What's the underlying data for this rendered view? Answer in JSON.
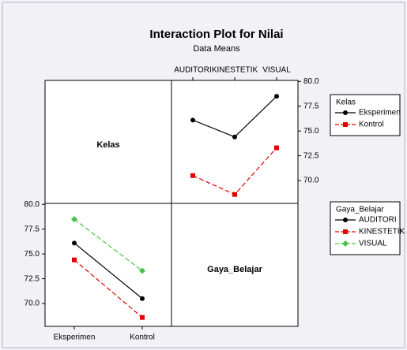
{
  "title": "Interaction Plot for Nilai",
  "subtitle": "Data Means",
  "row_labels": [
    "Kelas",
    "Gaya_Belajar"
  ],
  "chart_data": [
    {
      "type": "line",
      "legend_title": "Kelas",
      "categories": [
        "AUDITORI",
        "KINESTETIK",
        "VISUAL"
      ],
      "series": [
        {
          "name": "Eksperimen",
          "color": "#000000",
          "marker": "circle",
          "dashed": false,
          "values": [
            76.1,
            74.4,
            78.5
          ]
        },
        {
          "name": "Kontrol",
          "color": "#e00000",
          "marker": "square",
          "dashed": true,
          "values": [
            70.5,
            68.6,
            73.3
          ]
        }
      ],
      "ylim": [
        67.7,
        80.1
      ],
      "yticks": [
        {
          "value": 70,
          "label": "70.0"
        },
        {
          "value": 72.5,
          "label": "72.5"
        },
        {
          "value": 75,
          "label": "75.0"
        },
        {
          "value": 77.5,
          "label": "77.5"
        },
        {
          "value": 80,
          "label": "80.0"
        }
      ],
      "y_axis_side": "right",
      "x_axis_side": "top"
    },
    {
      "type": "line",
      "legend_title": "Gaya_Belajar",
      "categories": [
        "Eksperimen",
        "Kontrol"
      ],
      "series": [
        {
          "name": "AUDITORI",
          "color": "#000000",
          "marker": "circle",
          "dashed": false,
          "values": [
            76.1,
            70.5
          ]
        },
        {
          "name": "KINESTETIK",
          "color": "#e00000",
          "marker": "square",
          "dashed": true,
          "values": [
            74.4,
            68.6
          ]
        },
        {
          "name": "VISUAL",
          "color": "#4cc04c",
          "marker": "diamond",
          "dashed": true,
          "values": [
            78.5,
            73.3
          ]
        }
      ],
      "ylim": [
        67.7,
        80.1
      ],
      "yticks": [
        {
          "value": 70,
          "label": "70.0"
        },
        {
          "value": 72.5,
          "label": "72.5"
        },
        {
          "value": 75,
          "label": "75.0"
        },
        {
          "value": 77.5,
          "label": "77.5"
        },
        {
          "value": 80,
          "label": "80.0"
        }
      ],
      "y_axis_side": "left",
      "x_axis_side": "bottom"
    }
  ]
}
